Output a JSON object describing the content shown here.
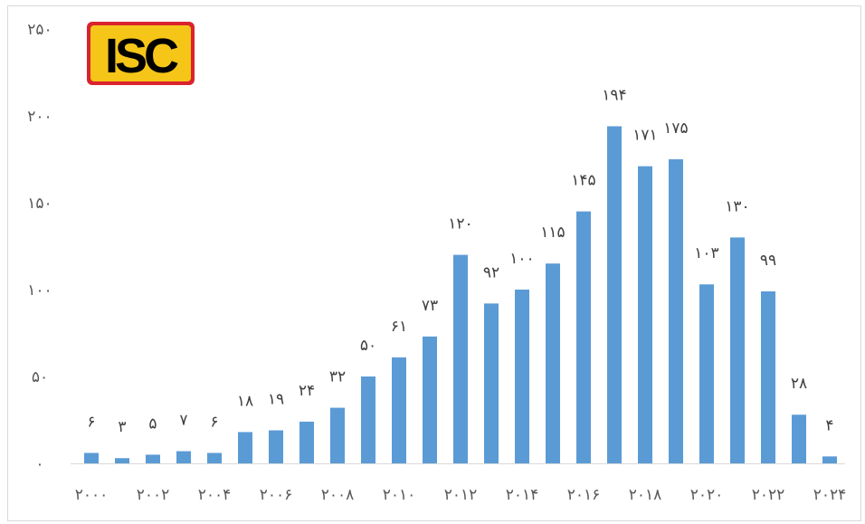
{
  "logo": {
    "text": "ISC",
    "colors": {
      "background": "#f5c518",
      "border": "#d9232e",
      "text": "#000000"
    }
  },
  "chart_data": {
    "type": "bar",
    "title": "",
    "xlabel": "",
    "ylabel": "",
    "categories": [
      "2000",
      "2001",
      "2002",
      "2003",
      "2004",
      "2005",
      "2006",
      "2007",
      "2008",
      "2009",
      "2010",
      "2011",
      "2012",
      "2013",
      "2014",
      "2015",
      "2016",
      "2017",
      "2018",
      "2019",
      "2020",
      "2021",
      "2022",
      "2023",
      "2024"
    ],
    "values": [
      6,
      3,
      5,
      7,
      6,
      18,
      19,
      24,
      32,
      50,
      61,
      73,
      120,
      92,
      100,
      115,
      145,
      194,
      171,
      175,
      103,
      130,
      99,
      28,
      4
    ],
    "value_labels": [
      "۶",
      "۳",
      "۵",
      "۷",
      "۶",
      "۱۸",
      "۱۹",
      "۲۴",
      "۳۲",
      "۵۰",
      "۶۱",
      "۷۳",
      "۱۲۰",
      "۹۲",
      "۱۰۰",
      "۱۱۵",
      "۱۴۵",
      "۱۹۴",
      "۱۷۱",
      "۱۷۵",
      "۱۰۳",
      "۱۳۰",
      "۹۹",
      "۲۸",
      "۴"
    ],
    "x_tick_labels": [
      {
        "index": 0,
        "label": "۲۰۰۰"
      },
      {
        "index": 2,
        "label": "۲۰۰۲"
      },
      {
        "index": 4,
        "label": "۲۰۰۴"
      },
      {
        "index": 6,
        "label": "۲۰۰۶"
      },
      {
        "index": 8,
        "label": "۲۰۰۸"
      },
      {
        "index": 10,
        "label": "۲۰۱۰"
      },
      {
        "index": 12,
        "label": "۲۰۱۲"
      },
      {
        "index": 14,
        "label": "۲۰۱۴"
      },
      {
        "index": 16,
        "label": "۲۰۱۶"
      },
      {
        "index": 18,
        "label": "۲۰۱۸"
      },
      {
        "index": 20,
        "label": "۲۰۲۰"
      },
      {
        "index": 22,
        "label": "۲۰۲۲"
      },
      {
        "index": 24,
        "label": "۲۰۲۴"
      }
    ],
    "y_ticks": [
      {
        "value": 0,
        "label": "۰"
      },
      {
        "value": 50,
        "label": "۵۰"
      },
      {
        "value": 100,
        "label": "۱۰۰"
      },
      {
        "value": 150,
        "label": "۱۵۰"
      },
      {
        "value": 200,
        "label": "۲۰۰"
      },
      {
        "value": 250,
        "label": "۲۵۰"
      }
    ],
    "ylim": [
      0,
      250
    ],
    "grid": false,
    "bar_color": "#5b9bd5",
    "axis_color": "#d9d9d9"
  }
}
